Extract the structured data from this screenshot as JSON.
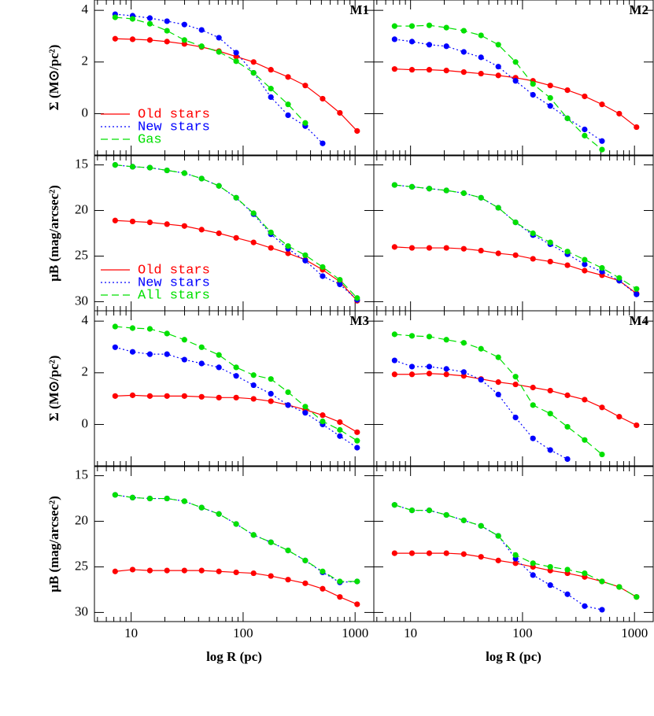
{
  "chart_data": [
    {
      "type": "line",
      "title": "M1",
      "ylabel": "Σ (M⊙/pc²)",
      "xscale": "log",
      "legend": "lower left",
      "x": [
        7.2,
        10.3,
        14.7,
        20.9,
        29.9,
        42.6,
        60.8,
        86.7,
        124,
        177,
        252,
        359,
        513,
        731,
        1043
      ],
      "xlim": [
        4.7,
        1470
      ],
      "xticks": [
        10,
        100,
        1000
      ],
      "ylim": [
        -1.6,
        4.4
      ],
      "yticks": [
        0,
        2,
        4
      ],
      "series": [
        {
          "name": "Old stars",
          "color": "#ff0000",
          "linestyle": "solid",
          "values": [
            2.9,
            2.88,
            2.85,
            2.79,
            2.7,
            2.58,
            2.42,
            2.21,
            2.0,
            1.7,
            1.42,
            1.09,
            0.58,
            0.03,
            -0.67
          ]
        },
        {
          "name": "New stars",
          "color": "#0000ff",
          "linestyle": "dotted",
          "values": [
            3.85,
            3.79,
            3.7,
            3.58,
            3.45,
            3.24,
            2.94,
            2.36,
            1.58,
            0.64,
            -0.06,
            -0.48,
            -1.15,
            null,
            null
          ]
        },
        {
          "name": "Gas",
          "color": "#00e000",
          "linestyle": "dashed",
          "values": [
            3.73,
            3.67,
            3.48,
            3.21,
            2.85,
            2.61,
            2.39,
            2.03,
            1.58,
            0.97,
            0.36,
            -0.36,
            null,
            null,
            null
          ]
        }
      ]
    },
    {
      "type": "line",
      "title": "M2",
      "xscale": "log",
      "x": [
        7.2,
        10.3,
        14.7,
        20.9,
        29.9,
        42.6,
        60.8,
        86.7,
        124,
        177,
        252,
        359,
        513,
        731,
        1043
      ],
      "xlim": [
        4.7,
        1470
      ],
      "xticks": [
        10,
        100,
        1000
      ],
      "ylim": [
        -1.6,
        4.4
      ],
      "yticks": [
        0,
        2,
        4
      ],
      "series": [
        {
          "color": "#ff0000",
          "linestyle": "solid",
          "values": [
            1.73,
            1.7,
            1.7,
            1.67,
            1.61,
            1.55,
            1.48,
            1.39,
            1.27,
            1.09,
            0.91,
            0.67,
            0.36,
            0.0,
            -0.52
          ]
        },
        {
          "color": "#0000ff",
          "linestyle": "dotted",
          "values": [
            2.88,
            2.79,
            2.67,
            2.61,
            2.39,
            2.18,
            1.82,
            1.27,
            0.73,
            0.3,
            -0.18,
            -0.61,
            -1.06,
            null,
            null
          ]
        },
        {
          "color": "#00e000",
          "linestyle": "dashed",
          "values": [
            3.39,
            3.39,
            3.42,
            3.33,
            3.21,
            3.03,
            2.67,
            2.0,
            1.15,
            0.61,
            -0.18,
            -0.85,
            -1.39,
            null,
            null
          ]
        }
      ]
    },
    {
      "type": "line",
      "ylabel": "μB (mag/arcsec²)",
      "xscale": "log",
      "legend": "lower left",
      "x": [
        7.2,
        10.3,
        14.7,
        20.9,
        29.9,
        42.6,
        60.8,
        86.7,
        124,
        177,
        252,
        359,
        513,
        731,
        1043
      ],
      "xlim": [
        4.7,
        1470
      ],
      "xticks": [
        10,
        100,
        1000
      ],
      "ylim": [
        31,
        14
      ],
      "yticks": [
        15,
        20,
        25,
        30
      ],
      "series": [
        {
          "name": "Old stars",
          "color": "#ff0000",
          "linestyle": "solid",
          "values": [
            21.1,
            21.2,
            21.3,
            21.5,
            21.7,
            22.1,
            22.5,
            23.0,
            23.5,
            24.1,
            24.7,
            25.4,
            26.5,
            27.8,
            29.9
          ]
        },
        {
          "name": "New stars",
          "color": "#0000ff",
          "linestyle": "dotted",
          "values": [
            15.0,
            15.2,
            15.3,
            15.6,
            15.9,
            16.5,
            17.3,
            18.6,
            20.4,
            22.6,
            24.2,
            25.5,
            27.2,
            28.1,
            29.8
          ]
        },
        {
          "name": "All stars",
          "color": "#00e000",
          "linestyle": "dashed",
          "values": [
            15.0,
            15.2,
            15.3,
            15.6,
            15.9,
            16.5,
            17.3,
            18.6,
            20.3,
            22.4,
            23.9,
            24.9,
            26.2,
            27.6,
            29.6
          ]
        }
      ]
    },
    {
      "type": "line",
      "xscale": "log",
      "x": [
        7.2,
        10.3,
        14.7,
        20.9,
        29.9,
        42.6,
        60.8,
        86.7,
        124,
        177,
        252,
        359,
        513,
        731,
        1043
      ],
      "xlim": [
        4.7,
        1470
      ],
      "xticks": [
        10,
        100,
        1000
      ],
      "ylim": [
        31,
        14
      ],
      "yticks": [
        15,
        20,
        25,
        30
      ],
      "series": [
        {
          "color": "#ff0000",
          "linestyle": "solid",
          "values": [
            24.0,
            24.1,
            24.1,
            24.1,
            24.2,
            24.4,
            24.7,
            24.9,
            25.3,
            25.6,
            26.0,
            26.6,
            27.1,
            27.7,
            29.1
          ]
        },
        {
          "color": "#0000ff",
          "linestyle": "dotted",
          "values": [
            17.2,
            17.4,
            17.6,
            17.8,
            18.1,
            18.6,
            19.7,
            21.3,
            22.7,
            23.7,
            24.8,
            25.9,
            26.7,
            27.7,
            29.2
          ]
        },
        {
          "color": "#00e000",
          "linestyle": "dashed",
          "values": [
            17.2,
            17.4,
            17.6,
            17.8,
            18.1,
            18.6,
            19.7,
            21.3,
            22.5,
            23.5,
            24.5,
            25.4,
            26.3,
            27.4,
            28.6
          ]
        }
      ]
    },
    {
      "type": "line",
      "title": "M3",
      "ylabel": "Σ (M⊙/pc²)",
      "xscale": "log",
      "x": [
        7.2,
        10.3,
        14.7,
        20.9,
        29.9,
        42.6,
        60.8,
        86.7,
        124,
        177,
        252,
        359,
        513,
        731,
        1043
      ],
      "xlim": [
        4.7,
        1470
      ],
      "xticks": [
        10,
        100,
        1000
      ],
      "ylim": [
        -1.6,
        4.4
      ],
      "yticks": [
        0,
        2,
        4
      ],
      "series": [
        {
          "color": "#ff0000",
          "linestyle": "solid",
          "values": [
            1.1,
            1.13,
            1.1,
            1.1,
            1.1,
            1.07,
            1.04,
            1.04,
            0.99,
            0.9,
            0.75,
            0.57,
            0.36,
            0.09,
            -0.3
          ]
        },
        {
          "color": "#0000ff",
          "linestyle": "dotted",
          "values": [
            2.99,
            2.81,
            2.72,
            2.72,
            2.51,
            2.36,
            2.21,
            1.88,
            1.52,
            1.19,
            0.75,
            0.45,
            0.0,
            -0.45,
            -0.9
          ]
        },
        {
          "color": "#00e000",
          "linestyle": "dashed",
          "values": [
            3.79,
            3.73,
            3.7,
            3.52,
            3.28,
            2.99,
            2.69,
            2.21,
            1.91,
            1.76,
            1.25,
            0.69,
            0.12,
            -0.21,
            -0.63
          ]
        }
      ]
    },
    {
      "type": "line",
      "title": "M4",
      "xscale": "log",
      "x": [
        7.2,
        10.3,
        14.7,
        20.9,
        29.9,
        42.6,
        60.8,
        86.7,
        124,
        177,
        252,
        359,
        513,
        731,
        1043
      ],
      "xlim": [
        4.7,
        1470
      ],
      "xticks": [
        10,
        100,
        1000
      ],
      "ylim": [
        -1.6,
        4.4
      ],
      "yticks": [
        0,
        2,
        4
      ],
      "series": [
        {
          "color": "#ff0000",
          "linestyle": "solid",
          "values": [
            1.94,
            1.94,
            1.97,
            1.94,
            1.88,
            1.76,
            1.64,
            1.55,
            1.43,
            1.31,
            1.13,
            0.96,
            0.66,
            0.3,
            -0.03
          ]
        },
        {
          "color": "#0000ff",
          "linestyle": "dotted",
          "values": [
            2.48,
            2.24,
            2.24,
            2.15,
            2.03,
            1.73,
            1.16,
            0.27,
            -0.54,
            -0.99,
            -1.34,
            null,
            null,
            null,
            null
          ]
        },
        {
          "color": "#00e000",
          "linestyle": "dashed",
          "values": [
            3.49,
            3.43,
            3.4,
            3.28,
            3.16,
            2.93,
            2.6,
            1.85,
            0.75,
            0.42,
            -0.09,
            -0.6,
            -1.16,
            null,
            null
          ]
        }
      ]
    },
    {
      "type": "line",
      "ylabel": "μB (mag/arcsec²)",
      "xlabel": "log R (pc)",
      "xscale": "log",
      "x": [
        7.2,
        10.3,
        14.7,
        20.9,
        29.9,
        42.6,
        60.8,
        86.7,
        124,
        177,
        252,
        359,
        513,
        731,
        1043
      ],
      "xlim": [
        4.7,
        1470
      ],
      "xticks": [
        10,
        100,
        1000
      ],
      "ylim": [
        31,
        14
      ],
      "yticks": [
        15,
        20,
        25,
        30
      ],
      "series": [
        {
          "color": "#ff0000",
          "linestyle": "solid",
          "values": [
            25.5,
            25.3,
            25.4,
            25.4,
            25.4,
            25.4,
            25.5,
            25.6,
            25.7,
            26.0,
            26.4,
            26.8,
            27.4,
            28.3,
            29.1
          ]
        },
        {
          "color": "#0000ff",
          "linestyle": "dotted",
          "values": [
            17.1,
            17.4,
            17.5,
            17.5,
            17.8,
            18.5,
            19.2,
            20.3,
            21.5,
            22.3,
            23.2,
            24.3,
            25.6,
            26.7,
            26.6
          ]
        },
        {
          "color": "#00e000",
          "linestyle": "dashed",
          "values": [
            17.1,
            17.4,
            17.5,
            17.5,
            17.8,
            18.5,
            19.2,
            20.3,
            21.5,
            22.3,
            23.2,
            24.3,
            25.5,
            26.6,
            26.6
          ]
        }
      ]
    },
    {
      "type": "line",
      "xlabel": "log R (pc)",
      "xscale": "log",
      "x": [
        7.2,
        10.3,
        14.7,
        20.9,
        29.9,
        42.6,
        60.8,
        86.7,
        124,
        177,
        252,
        359,
        513,
        731,
        1043
      ],
      "xlim": [
        4.7,
        1470
      ],
      "xticks": [
        10,
        100,
        1000
      ],
      "ylim": [
        31,
        14
      ],
      "yticks": [
        15,
        20,
        25,
        30
      ],
      "series": [
        {
          "color": "#ff0000",
          "linestyle": "solid",
          "values": [
            23.5,
            23.5,
            23.5,
            23.5,
            23.6,
            23.9,
            24.3,
            24.6,
            25.0,
            25.4,
            25.7,
            26.1,
            26.6,
            27.2,
            28.3
          ]
        },
        {
          "color": "#0000ff",
          "linestyle": "dotted",
          "values": [
            18.2,
            18.8,
            18.8,
            19.3,
            19.9,
            20.5,
            21.6,
            24.1,
            25.9,
            27.0,
            28.0,
            29.3,
            29.7,
            null,
            null
          ]
        },
        {
          "color": "#00e000",
          "linestyle": "dashed",
          "values": [
            18.2,
            18.8,
            18.8,
            19.3,
            19.9,
            20.5,
            21.6,
            23.7,
            24.6,
            25.0,
            25.3,
            25.7,
            26.6,
            27.2,
            28.3
          ]
        }
      ]
    }
  ]
}
